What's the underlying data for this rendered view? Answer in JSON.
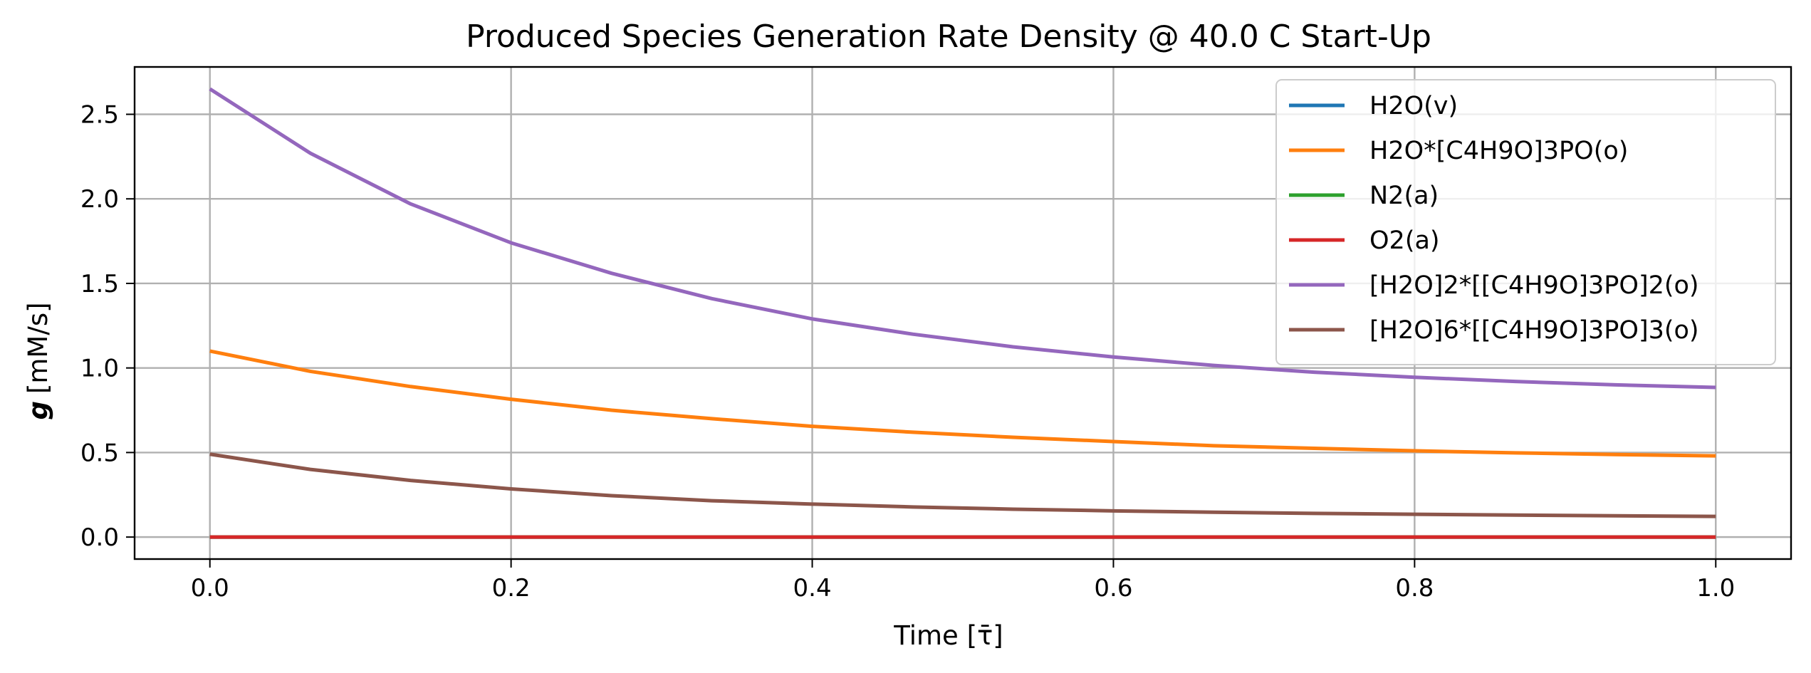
{
  "chart_data": {
    "type": "line",
    "title": "Produced Species Generation Rate Density @ 40.0 C Start-Up",
    "xlabel": "Time [τ̄]",
    "ylabel_symbol": "g",
    "ylabel_unit": "[mM/s]",
    "xlim": [
      -0.05,
      1.05
    ],
    "ylim": [
      -0.13,
      2.78
    ],
    "xticks": [
      0.0,
      0.2,
      0.4,
      0.6,
      0.8,
      1.0
    ],
    "xtick_labels": [
      "0.0",
      "0.2",
      "0.4",
      "0.6",
      "0.8",
      "1.0"
    ],
    "yticks": [
      0.0,
      0.5,
      1.0,
      1.5,
      2.0,
      2.5
    ],
    "ytick_labels": [
      "0.0",
      "0.5",
      "1.0",
      "1.5",
      "2.0",
      "2.5"
    ],
    "grid": true,
    "legend_position": "top-right",
    "x": [
      0.0,
      0.0667,
      0.1333,
      0.2,
      0.2667,
      0.3333,
      0.4,
      0.4667,
      0.5333,
      0.6,
      0.6667,
      0.7333,
      0.8,
      0.8667,
      0.9333,
      1.0
    ],
    "series": [
      {
        "name": "H2O(v)",
        "color": "#1f77b4",
        "values": [
          0,
          0,
          0,
          0,
          0,
          0,
          0,
          0,
          0,
          0,
          0,
          0,
          0,
          0,
          0,
          0
        ]
      },
      {
        "name": "H2O*[C4H9O]3PO(o)",
        "color": "#ff7f0e",
        "values": [
          1.1,
          0.98,
          0.89,
          0.815,
          0.75,
          0.7,
          0.655,
          0.62,
          0.59,
          0.565,
          0.54,
          0.525,
          0.51,
          0.498,
          0.488,
          0.48
        ]
      },
      {
        "name": "N2(a)",
        "color": "#2ca02c",
        "values": [
          0,
          0,
          0,
          0,
          0,
          0,
          0,
          0,
          0,
          0,
          0,
          0,
          0,
          0,
          0,
          0
        ]
      },
      {
        "name": "O2(a)",
        "color": "#d62728",
        "values": [
          0,
          0,
          0,
          0,
          0,
          0,
          0,
          0,
          0,
          0,
          0,
          0,
          0,
          0,
          0,
          0
        ]
      },
      {
        "name": "[H2O]2*[[C4H9O]3PO]2(o)",
        "color": "#9467bd",
        "values": [
          2.65,
          2.27,
          1.97,
          1.74,
          1.56,
          1.41,
          1.29,
          1.2,
          1.125,
          1.065,
          1.015,
          0.975,
          0.945,
          0.92,
          0.9,
          0.885
        ]
      },
      {
        "name": "[H2O]6*[[C4H9O]3PO]3(o)",
        "color": "#8c564b",
        "values": [
          0.49,
          0.4,
          0.335,
          0.285,
          0.245,
          0.215,
          0.195,
          0.178,
          0.165,
          0.155,
          0.147,
          0.14,
          0.135,
          0.13,
          0.126,
          0.122
        ]
      }
    ]
  }
}
